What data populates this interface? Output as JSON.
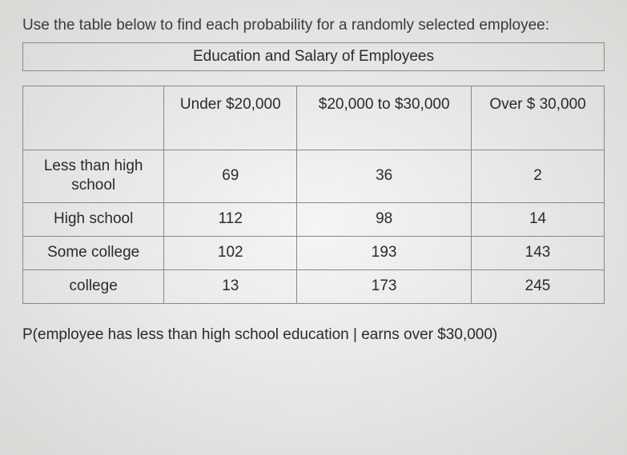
{
  "instruction": "Use the table below to find each probability for a randomly selected employee:",
  "table": {
    "title": "Education and Salary of Employees",
    "columns": [
      "Under $20,000",
      "$20,000 to $30,000",
      "Over $ 30,000"
    ],
    "rows": [
      {
        "label": "Less than high school",
        "values": [
          "69",
          "36",
          "2"
        ]
      },
      {
        "label": "High school",
        "values": [
          "112",
          "98",
          "14"
        ]
      },
      {
        "label": "Some college",
        "values": [
          "102",
          "193",
          "143"
        ]
      },
      {
        "label": "college",
        "values": [
          "13",
          "173",
          "245"
        ]
      }
    ],
    "border_color": "#888888",
    "background": "transparent",
    "font_size": 19
  },
  "question": "P(employee has less than high school education | earns over $30,000)"
}
